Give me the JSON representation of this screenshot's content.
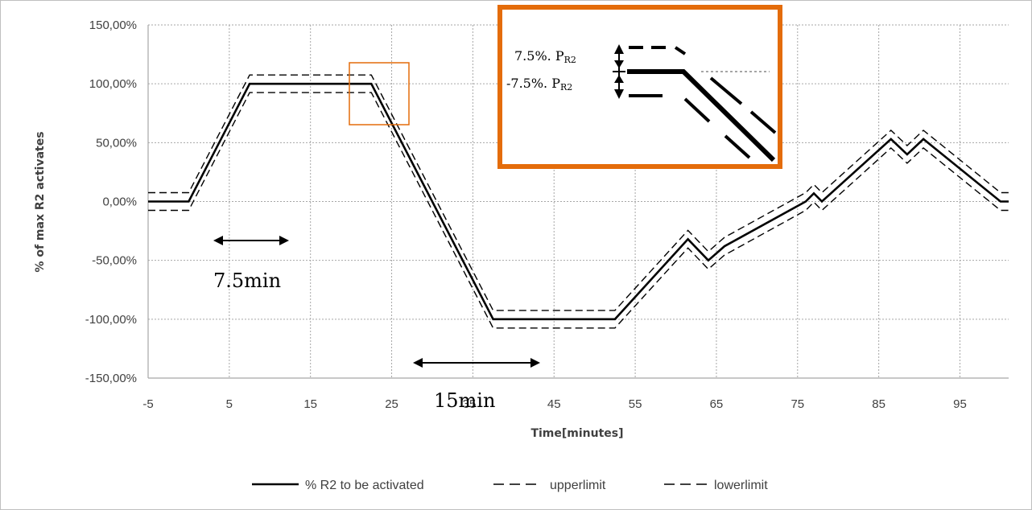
{
  "chart_data": {
    "type": "line",
    "xlabel": "Time[minutes]",
    "ylabel": "% of max R2 activates",
    "xlim": [
      -5,
      101
    ],
    "ylim": [
      -150,
      150
    ],
    "x_ticks": [
      "-5",
      "5",
      "15",
      "25",
      "35",
      "45",
      "55",
      "65",
      "75",
      "85",
      "95"
    ],
    "x_tick_values": [
      -5,
      5,
      15,
      25,
      35,
      45,
      55,
      65,
      75,
      85,
      95
    ],
    "y_ticks": [
      "150,00%",
      "100,00%",
      "50,00%",
      "0,00%",
      "-50,00%",
      "-100,00%",
      "-150,00%"
    ],
    "y_tick_values": [
      150,
      100,
      50,
      0,
      -50,
      -100,
      -150
    ],
    "grid": true,
    "legend_position": "bottom",
    "series": [
      {
        "name": "% R2 to be activated",
        "style": "solid",
        "x": [
          -5,
          0,
          2.5,
          7.5,
          22.5,
          37.5,
          52.5,
          61.5,
          64,
          66,
          76,
          77,
          78,
          86.5,
          88.5,
          90.5,
          100,
          101
        ],
        "y": [
          0,
          0,
          33.3,
          100,
          100,
          -100,
          -100,
          -32,
          -50,
          -38,
          0,
          7,
          0,
          53,
          40,
          53,
          0,
          0
        ]
      },
      {
        "name": "upperlimit",
        "style": "dashed",
        "x": [
          -5,
          0,
          2.5,
          7.5,
          22.5,
          37.5,
          52.5,
          61.5,
          64,
          66,
          76,
          77,
          78,
          86.5,
          88.5,
          90.5,
          100,
          101
        ],
        "y": [
          7.5,
          7.5,
          40.8,
          107.5,
          107.5,
          -92.5,
          -92.5,
          -24.5,
          -42.5,
          -30.5,
          7.5,
          14.5,
          7.5,
          60.5,
          47.5,
          60.5,
          7.5,
          7.5
        ]
      },
      {
        "name": "lowerlimit",
        "style": "dashed",
        "x": [
          -5,
          0,
          2.5,
          7.5,
          22.5,
          37.5,
          52.5,
          61.5,
          64,
          66,
          76,
          77,
          78,
          86.5,
          88.5,
          90.5,
          100,
          101
        ],
        "y": [
          -7.5,
          -7.5,
          25.8,
          92.5,
          92.5,
          -107.5,
          -107.5,
          -39.5,
          -57.5,
          -45.5,
          -7.5,
          -0.5,
          -7.5,
          45.5,
          32.5,
          45.5,
          -7.5,
          -7.5
        ]
      }
    ],
    "annotations": {
      "arrow1_label": "7.5min",
      "arrow2_label": "15min",
      "arrow2_hidden_tick": "35",
      "inset_upper_label": "7.5%. P",
      "inset_lower_label": "-7.5%. P",
      "inset_subscript": "R2"
    },
    "colors": {
      "line": "#000000",
      "grid": "#a6a6a6",
      "highlight": "#e46c0a"
    }
  }
}
